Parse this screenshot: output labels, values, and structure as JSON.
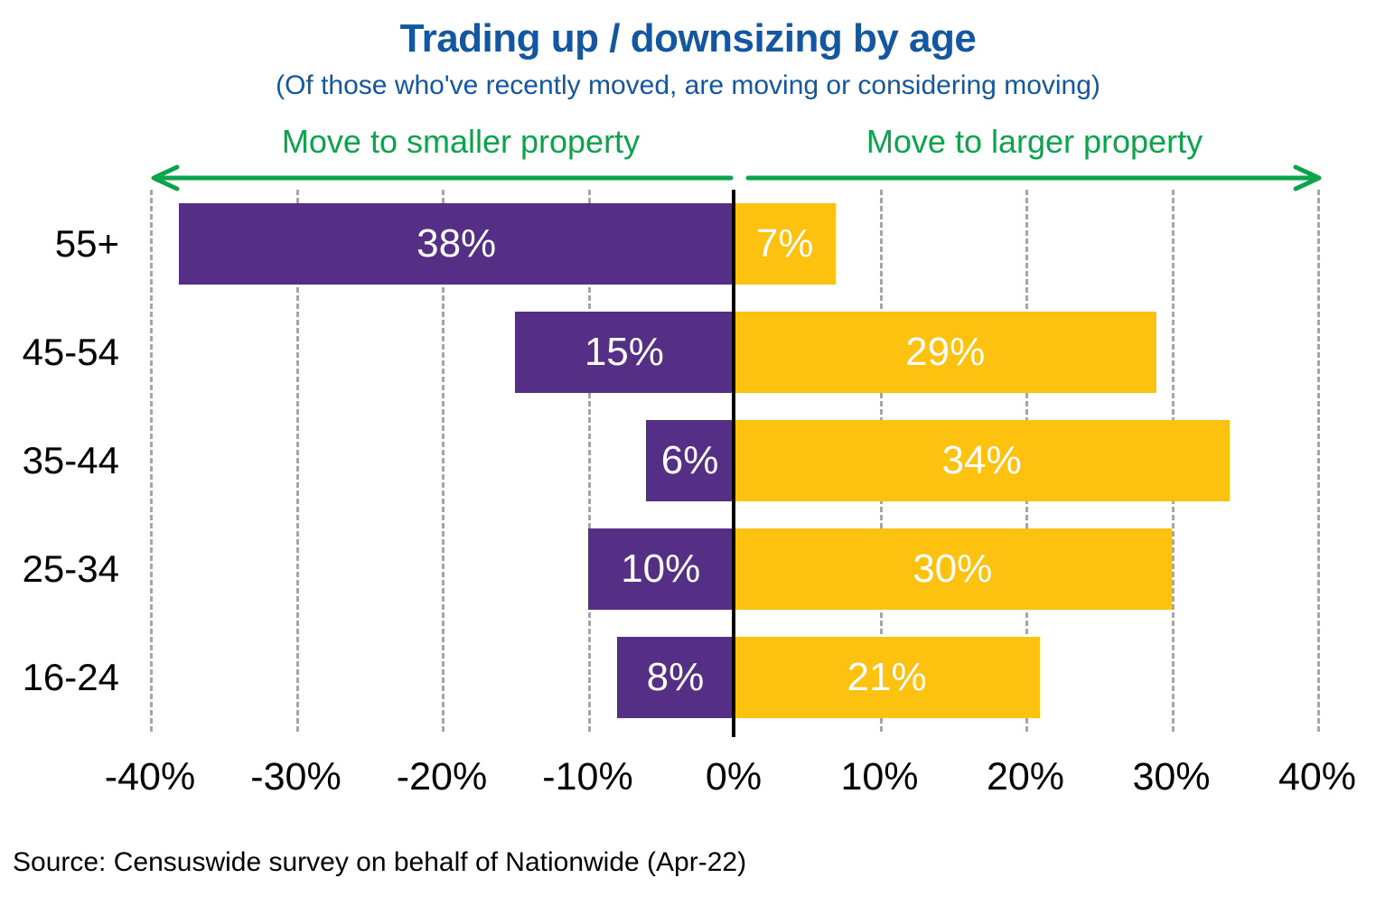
{
  "header": {
    "title": "Trading up / downsizing by age",
    "subtitle": "(Of those who've recently moved, are moving or considering moving)"
  },
  "directions": {
    "left_label": "Move to smaller property",
    "right_label": "Move to larger property"
  },
  "source": "Source: Censuswide survey on behalf of Nationwide (Apr-22)",
  "colors": {
    "title_blue": "#1257A0",
    "arrow_green": "#0AA44A",
    "smaller_purple": "#552E85",
    "larger_yellow": "#FDC110",
    "gridline_gray": "#A6A6A6",
    "axis_black": "#000000",
    "bar_label_white": "#FFFFFF"
  },
  "chart_data": {
    "type": "bar",
    "orientation": "horizontal-diverging",
    "title": "Trading up / downsizing by age",
    "subtitle": "(Of those who've recently moved, are moving or considering moving)",
    "categories": [
      "55+",
      "45-54",
      "35-44",
      "25-34",
      "16-24"
    ],
    "series": [
      {
        "name": "Move to smaller property",
        "side": "left",
        "color": "#552E85",
        "values": [
          38,
          15,
          6,
          10,
          8
        ],
        "labels": [
          "38%",
          "15%",
          "6%",
          "10%",
          "8%"
        ]
      },
      {
        "name": "Move to larger property",
        "side": "right",
        "color": "#FDC110",
        "values": [
          7,
          29,
          34,
          30,
          21
        ],
        "labels": [
          "7%",
          "29%",
          "34%",
          "30%",
          "21%"
        ]
      }
    ],
    "xlim": [
      -40,
      40
    ],
    "x_ticks": [
      -40,
      -30,
      -20,
      -10,
      0,
      10,
      20,
      30,
      40
    ],
    "x_tick_labels": [
      "-40%",
      "-30%",
      "-20%",
      "-10%",
      "0%",
      "10%",
      "20%",
      "30%",
      "40%"
    ],
    "grid": "vertical-dashed",
    "legend_position": "none"
  }
}
